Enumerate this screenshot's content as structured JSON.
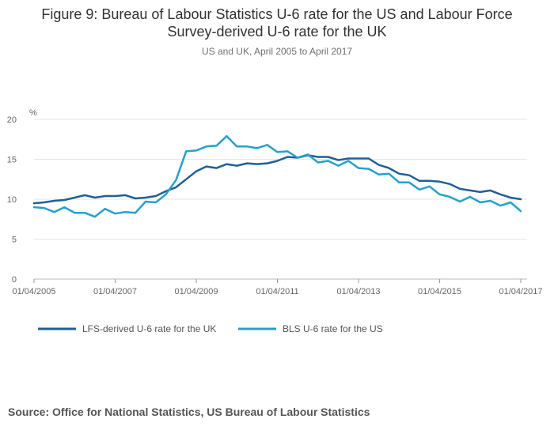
{
  "title_line1": "Figure 9: Bureau of Labour Statistics U-6 rate for the US and Labour Force",
  "title_line2": "Survey-derived U-6 rate for the UK",
  "subtitle": "US and UK, April 2005 to April 2017",
  "source": "Source: Office for National Statistics, US Bureau of Labour Statistics",
  "chart_data": {
    "type": "line",
    "ylabel": "%",
    "ylim": [
      0,
      20
    ],
    "yticks": [
      0,
      5,
      10,
      15,
      20
    ],
    "xlim": [
      2005.25,
      2017.25
    ],
    "xticks": [
      {
        "value": 2005.25,
        "label": "01/04/2005"
      },
      {
        "value": 2007.25,
        "label": "01/04/2007"
      },
      {
        "value": 2009.25,
        "label": "01/04/2009"
      },
      {
        "value": 2011.25,
        "label": "01/04/2011"
      },
      {
        "value": 2013.25,
        "label": "01/04/2013"
      },
      {
        "value": 2015.25,
        "label": "01/04/2015"
      },
      {
        "value": 2017.25,
        "label": "01/04/2017"
      }
    ],
    "grid": true,
    "legend_position": "bottom-left",
    "x_start": 2005.25,
    "x_step": 0.25,
    "series": [
      {
        "name": "LFS-derived U-6 rate for the UK",
        "color": "#206095",
        "values": [
          9.5,
          9.6,
          9.8,
          9.9,
          10.2,
          10.5,
          10.2,
          10.4,
          10.4,
          10.5,
          10.1,
          10.2,
          10.4,
          11.0,
          11.5,
          12.5,
          13.5,
          14.1,
          13.9,
          14.4,
          14.2,
          14.5,
          14.4,
          14.5,
          14.8,
          15.3,
          15.2,
          15.5,
          15.3,
          15.3,
          14.9,
          15.1,
          15.1,
          15.1,
          14.3,
          13.9,
          13.2,
          13.0,
          12.3,
          12.3,
          12.2,
          11.9,
          11.3,
          11.1,
          10.9,
          11.1,
          10.6,
          10.2,
          10.0
        ]
      },
      {
        "name": "BLS U-6 rate for the US",
        "color": "#27A0CC",
        "values": [
          9.0,
          8.9,
          8.4,
          9.0,
          8.3,
          8.3,
          7.8,
          8.8,
          8.2,
          8.4,
          8.3,
          9.7,
          9.6,
          10.6,
          12.4,
          16.0,
          16.1,
          16.6,
          16.7,
          17.9,
          16.6,
          16.6,
          16.4,
          16.8,
          15.9,
          16.0,
          15.2,
          15.6,
          14.6,
          14.8,
          14.2,
          14.8,
          13.9,
          13.8,
          13.1,
          13.2,
          12.1,
          12.1,
          11.2,
          11.6,
          10.6,
          10.3,
          9.7,
          10.3,
          9.6,
          9.8,
          9.2,
          9.6,
          8.5
        ]
      }
    ]
  }
}
